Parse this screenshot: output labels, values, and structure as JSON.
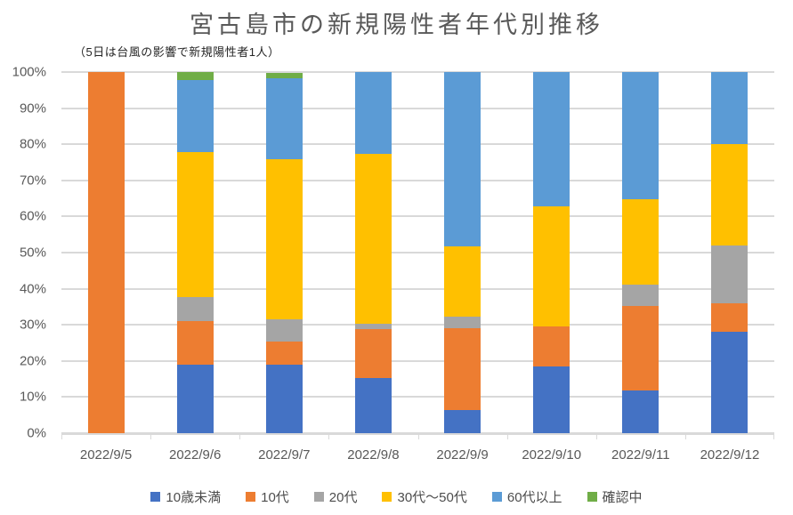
{
  "chart_data": {
    "type": "bar",
    "subtype": "stacked-100-percent-column",
    "title": "宮古島市の新規陽性者年代別推移",
    "subtitle": "（5日は台風の影響で新規陽性者1人）",
    "categories": [
      "2022/9/5",
      "2022/9/6",
      "2022/9/7",
      "2022/9/8",
      "2022/9/9",
      "2022/9/10",
      "2022/9/11",
      "2022/9/12"
    ],
    "unit": "percent",
    "ylim": [
      0,
      100
    ],
    "y_ticks": [
      "100%",
      "90%",
      "80%",
      "70%",
      "60%",
      "50%",
      "40%",
      "30%",
      "20%",
      "10%",
      "0%"
    ],
    "grid": "horizontal",
    "legend_position": "bottom",
    "series": [
      {
        "name": "10歳未満",
        "color": "#4472C4",
        "values": [
          0,
          18.9,
          19.0,
          15.2,
          6.5,
          18.5,
          11.8,
          28.0
        ]
      },
      {
        "name": "10代",
        "color": "#ED7D31",
        "values": [
          100,
          12.2,
          6.3,
          13.6,
          22.6,
          11.1,
          23.5,
          8.0
        ]
      },
      {
        "name": "20代",
        "color": "#A5A5A5",
        "values": [
          0,
          6.7,
          6.3,
          1.5,
          3.2,
          0,
          5.9,
          16.0
        ]
      },
      {
        "name": "30代〜50代",
        "color": "#FFC000",
        "values": [
          0,
          40.0,
          44.4,
          47.0,
          19.4,
          33.3,
          23.5,
          28.0
        ]
      },
      {
        "name": "60代以上",
        "color": "#5B9BD5",
        "values": [
          0,
          20.0,
          22.2,
          22.7,
          48.4,
          37.0,
          35.3,
          20.0
        ]
      },
      {
        "name": "確認中",
        "color": "#70AD47",
        "values": [
          0,
          2.2,
          1.6,
          0,
          0,
          0,
          0,
          0
        ]
      }
    ],
    "colors": {
      "grid": "#D9D9D9",
      "axis_text": "#595959",
      "title_text": "#595959",
      "subtitle_text": "#262626"
    }
  }
}
